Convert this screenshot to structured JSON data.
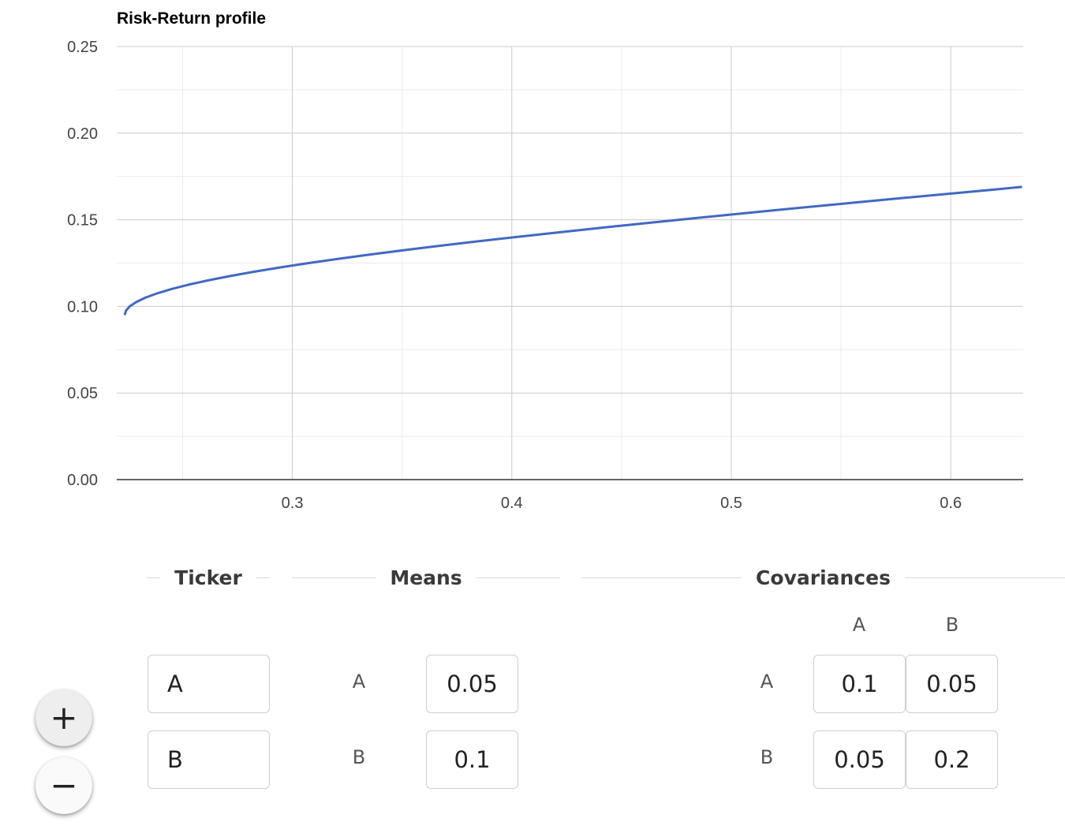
{
  "chart_data": {
    "type": "line",
    "title": "Risk-Return profile",
    "xlabel": "",
    "ylabel": "",
    "xlim": [
      0.22,
      0.633
    ],
    "ylim": [
      0,
      0.25
    ],
    "x_ticks": [
      "0.3",
      "0.4",
      "0.5",
      "0.6"
    ],
    "y_ticks": [
      "0.00",
      "0.05",
      "0.10",
      "0.15",
      "0.20",
      "0.25"
    ],
    "grid": true,
    "legend": "none",
    "series": [
      {
        "color": "#4169c3",
        "x": [
          0.2236,
          0.2242,
          0.2259,
          0.2289,
          0.233,
          0.2384,
          0.2449,
          0.2527,
          0.2615,
          0.2715,
          0.2825,
          0.2945,
          0.3074,
          0.3213,
          0.3359,
          0.3513,
          0.3674,
          0.3842,
          0.4015,
          0.4195,
          0.4379,
          0.4568,
          0.4762,
          0.4958,
          0.5158,
          0.5362,
          0.5568,
          0.5776,
          0.5987,
          0.62,
          0.6325
        ],
        "y": [
          0.095,
          0.0975,
          0.1,
          0.1025,
          0.105,
          0.1075,
          0.11,
          0.1125,
          0.115,
          0.1175,
          0.12,
          0.1225,
          0.125,
          0.1275,
          0.13,
          0.1325,
          0.135,
          0.1375,
          0.14,
          0.1425,
          0.145,
          0.1475,
          0.15,
          0.1525,
          0.155,
          0.1575,
          0.16,
          0.1625,
          0.165,
          0.1675,
          0.169
        ]
      }
    ]
  },
  "ticker": {
    "heading": "Ticker",
    "values": [
      "A",
      "B"
    ]
  },
  "means": {
    "heading": "Means",
    "labels": [
      "A",
      "B"
    ],
    "values": [
      "0.05",
      "0.1"
    ]
  },
  "covariances": {
    "heading": "Covariances",
    "col_labels": [
      "A",
      "B"
    ],
    "row_labels": [
      "A",
      "B"
    ],
    "values": [
      [
        "0.1",
        "0.05"
      ],
      [
        "0.05",
        "0.2"
      ]
    ]
  },
  "fab": {
    "add_glyph": "+",
    "remove_glyph": "−"
  }
}
